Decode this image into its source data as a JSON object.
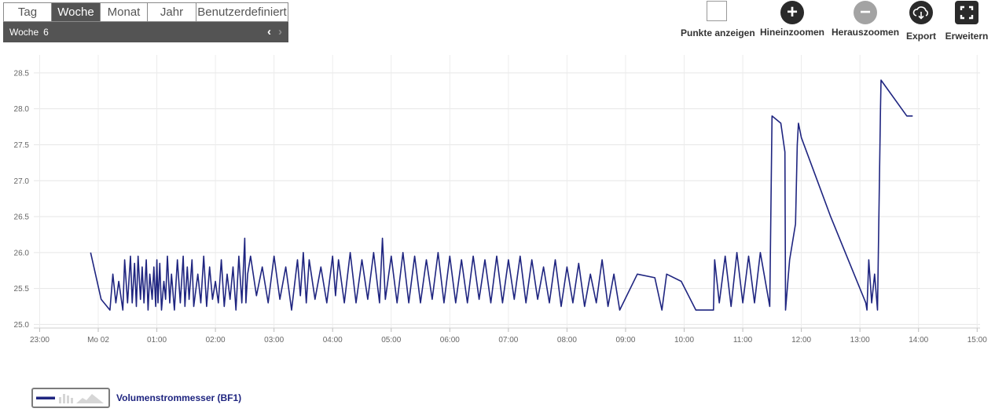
{
  "tabs": [
    {
      "label": "Tag",
      "active": false
    },
    {
      "label": "Woche",
      "active": true
    },
    {
      "label": "Monat",
      "active": false
    },
    {
      "label": "Jahr",
      "active": false
    },
    {
      "label": "Benutzerdefiniert",
      "active": false
    }
  ],
  "period": {
    "label": "Woche",
    "number": "6",
    "prev_icon": "chevron-left-icon",
    "next_icon": "chevron-right-icon"
  },
  "toolbar": {
    "show_points": "Punkte anzeigen",
    "zoom_in": "Hineinzoomen",
    "zoom_out": "Herauszoomen",
    "export": "Export",
    "expand": "Erweitern"
  },
  "colors": {
    "line": "#1f2580",
    "toolbar_icon": "#2a2a2a",
    "toolbar_icon_disabled": "#a3a3a3",
    "tab_active": "#545454"
  },
  "legend": {
    "label": "Volumenstrommesser (BF1)"
  },
  "chart_data": {
    "type": "line",
    "x_unit": "hours",
    "xticks": [
      "23:00",
      "Mo 02",
      "01:00",
      "02:00",
      "03:00",
      "04:00",
      "05:00",
      "06:00",
      "07:00",
      "08:00",
      "09:00",
      "10:00",
      "11:00",
      "12:00",
      "13:00",
      "14:00",
      "15:00"
    ],
    "xlim": [
      -1.1,
      15.05
    ],
    "yticks": [
      "25.0",
      "25.5",
      "26.0",
      "26.5",
      "27.0",
      "27.5",
      "28.0",
      "28.5"
    ],
    "ylim": [
      24.95,
      28.75
    ],
    "grid": true,
    "series": [
      {
        "name": "Volumenstrommesser (BF1)",
        "x": [
          -0.13,
          0.05,
          0.2,
          0.25,
          0.3,
          0.35,
          0.42,
          0.45,
          0.5,
          0.55,
          0.58,
          0.62,
          0.65,
          0.68,
          0.72,
          0.75,
          0.78,
          0.82,
          0.85,
          0.88,
          0.92,
          0.95,
          0.98,
          1.0,
          1.02,
          1.05,
          1.08,
          1.12,
          1.15,
          1.18,
          1.22,
          1.25,
          1.3,
          1.35,
          1.4,
          1.45,
          1.48,
          1.52,
          1.55,
          1.6,
          1.63,
          1.7,
          1.75,
          1.8,
          1.85,
          1.9,
          1.95,
          2.0,
          2.05,
          2.1,
          2.15,
          2.2,
          2.25,
          2.3,
          2.35,
          2.4,
          2.45,
          2.5,
          2.52,
          2.55,
          2.6,
          2.7,
          2.8,
          2.9,
          3.0,
          3.1,
          3.2,
          3.3,
          3.4,
          3.45,
          3.5,
          3.55,
          3.6,
          3.7,
          3.8,
          3.9,
          4.0,
          4.05,
          4.1,
          4.2,
          4.3,
          4.4,
          4.5,
          4.6,
          4.7,
          4.8,
          4.85,
          4.9,
          5.0,
          5.1,
          5.2,
          5.3,
          5.4,
          5.5,
          5.6,
          5.7,
          5.8,
          5.9,
          6.0,
          6.1,
          6.2,
          6.3,
          6.4,
          6.5,
          6.6,
          6.7,
          6.8,
          6.9,
          7.0,
          7.1,
          7.2,
          7.3,
          7.4,
          7.5,
          7.6,
          7.7,
          7.8,
          7.9,
          8.0,
          8.1,
          8.2,
          8.3,
          8.4,
          8.5,
          8.6,
          8.7,
          8.8,
          8.9,
          9.2,
          9.5,
          9.62,
          9.7,
          9.95,
          10.2,
          10.5,
          10.52,
          10.6,
          10.7,
          10.8,
          10.9,
          11.0,
          11.1,
          11.2,
          11.3,
          11.45,
          11.46,
          11.5,
          11.65,
          11.72,
          11.73,
          11.78,
          11.8,
          11.9,
          11.93,
          11.95,
          12.0,
          12.5,
          13.1,
          13.12,
          13.15,
          13.2,
          13.25,
          13.3,
          13.35,
          13.36,
          13.8,
          13.9
        ],
        "y": [
          26.0,
          25.35,
          25.2,
          25.7,
          25.3,
          25.6,
          25.2,
          25.9,
          25.3,
          25.95,
          25.3,
          25.85,
          25.25,
          25.95,
          25.35,
          25.8,
          25.3,
          25.9,
          25.2,
          25.7,
          25.35,
          25.8,
          25.25,
          25.9,
          25.3,
          25.85,
          25.2,
          25.6,
          25.35,
          25.95,
          25.3,
          25.7,
          25.2,
          25.9,
          25.3,
          25.95,
          25.25,
          25.8,
          25.35,
          25.9,
          25.25,
          25.7,
          25.3,
          25.95,
          25.25,
          25.8,
          25.35,
          25.6,
          25.3,
          25.9,
          25.25,
          25.7,
          25.35,
          25.8,
          25.2,
          25.95,
          25.3,
          26.2,
          25.3,
          25.7,
          25.95,
          25.4,
          25.8,
          25.3,
          25.95,
          25.35,
          25.8,
          25.2,
          25.9,
          25.4,
          26.0,
          25.3,
          25.9,
          25.35,
          25.8,
          25.3,
          25.95,
          25.4,
          25.9,
          25.3,
          26.0,
          25.3,
          25.9,
          25.35,
          26.0,
          25.3,
          26.2,
          25.35,
          25.95,
          25.3,
          26.0,
          25.3,
          25.95,
          25.3,
          25.9,
          25.35,
          26.0,
          25.3,
          25.95,
          25.3,
          25.9,
          25.3,
          25.95,
          25.35,
          25.9,
          25.3,
          25.95,
          25.3,
          25.9,
          25.35,
          25.95,
          25.3,
          25.9,
          25.35,
          25.8,
          25.3,
          25.9,
          25.25,
          25.8,
          25.3,
          25.85,
          25.25,
          25.7,
          25.3,
          25.9,
          25.25,
          25.7,
          25.2,
          25.7,
          25.65,
          25.2,
          25.7,
          25.6,
          25.2,
          25.2,
          25.9,
          25.3,
          25.95,
          25.25,
          26.0,
          25.3,
          25.95,
          25.3,
          26.0,
          25.3,
          25.25,
          27.9,
          27.8,
          27.4,
          25.2,
          25.7,
          25.9,
          26.4,
          27.5,
          27.8,
          27.6,
          26.5,
          25.3,
          25.2,
          25.9,
          25.3,
          25.7,
          25.2,
          28.0,
          28.4,
          27.9,
          27.9
        ]
      }
    ]
  }
}
